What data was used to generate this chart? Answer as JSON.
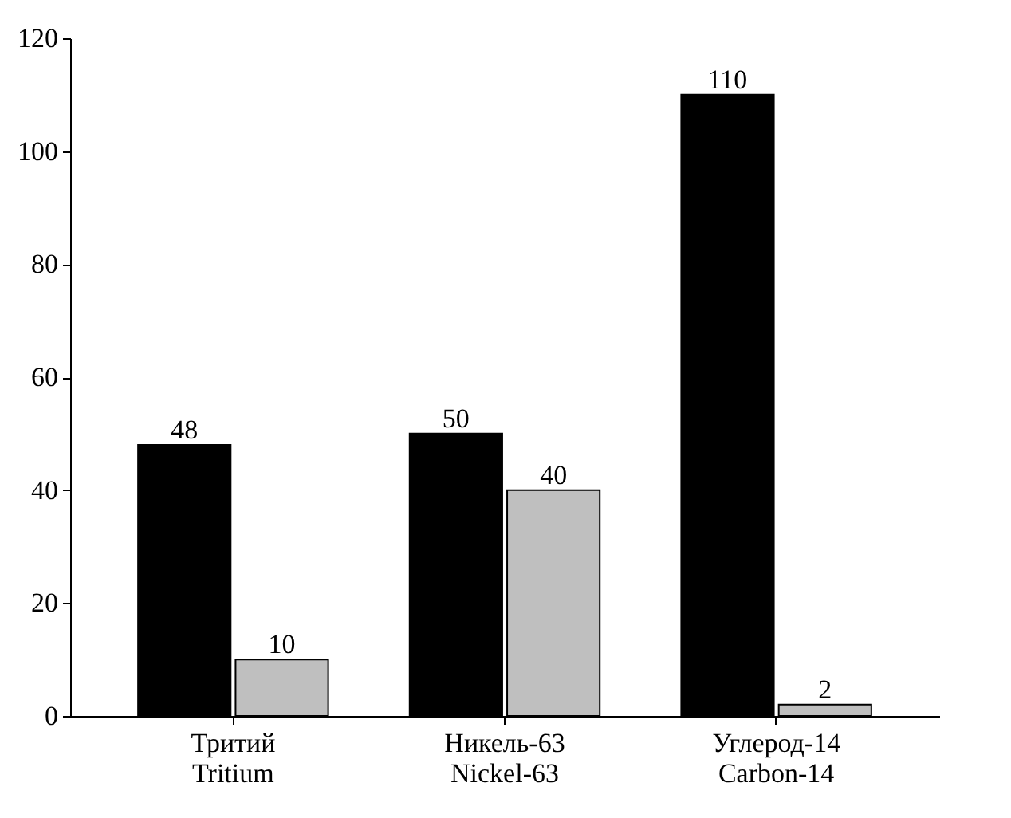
{
  "chart_data": {
    "type": "bar",
    "categories": [
      "Тритий\nTritium",
      "Никель-63\nNickel-63",
      "Углерод-14\nCarbon-14"
    ],
    "series": [
      {
        "color": "#000000",
        "values": [
          48,
          50,
          110
        ]
      },
      {
        "color": "#bfbfbf",
        "values": [
          10,
          40,
          2
        ]
      }
    ],
    "ylim": [
      0,
      120
    ],
    "yticks": [
      0,
      20,
      40,
      60,
      80,
      100,
      120
    ],
    "data_labels": true,
    "grid": false,
    "legend": false
  }
}
